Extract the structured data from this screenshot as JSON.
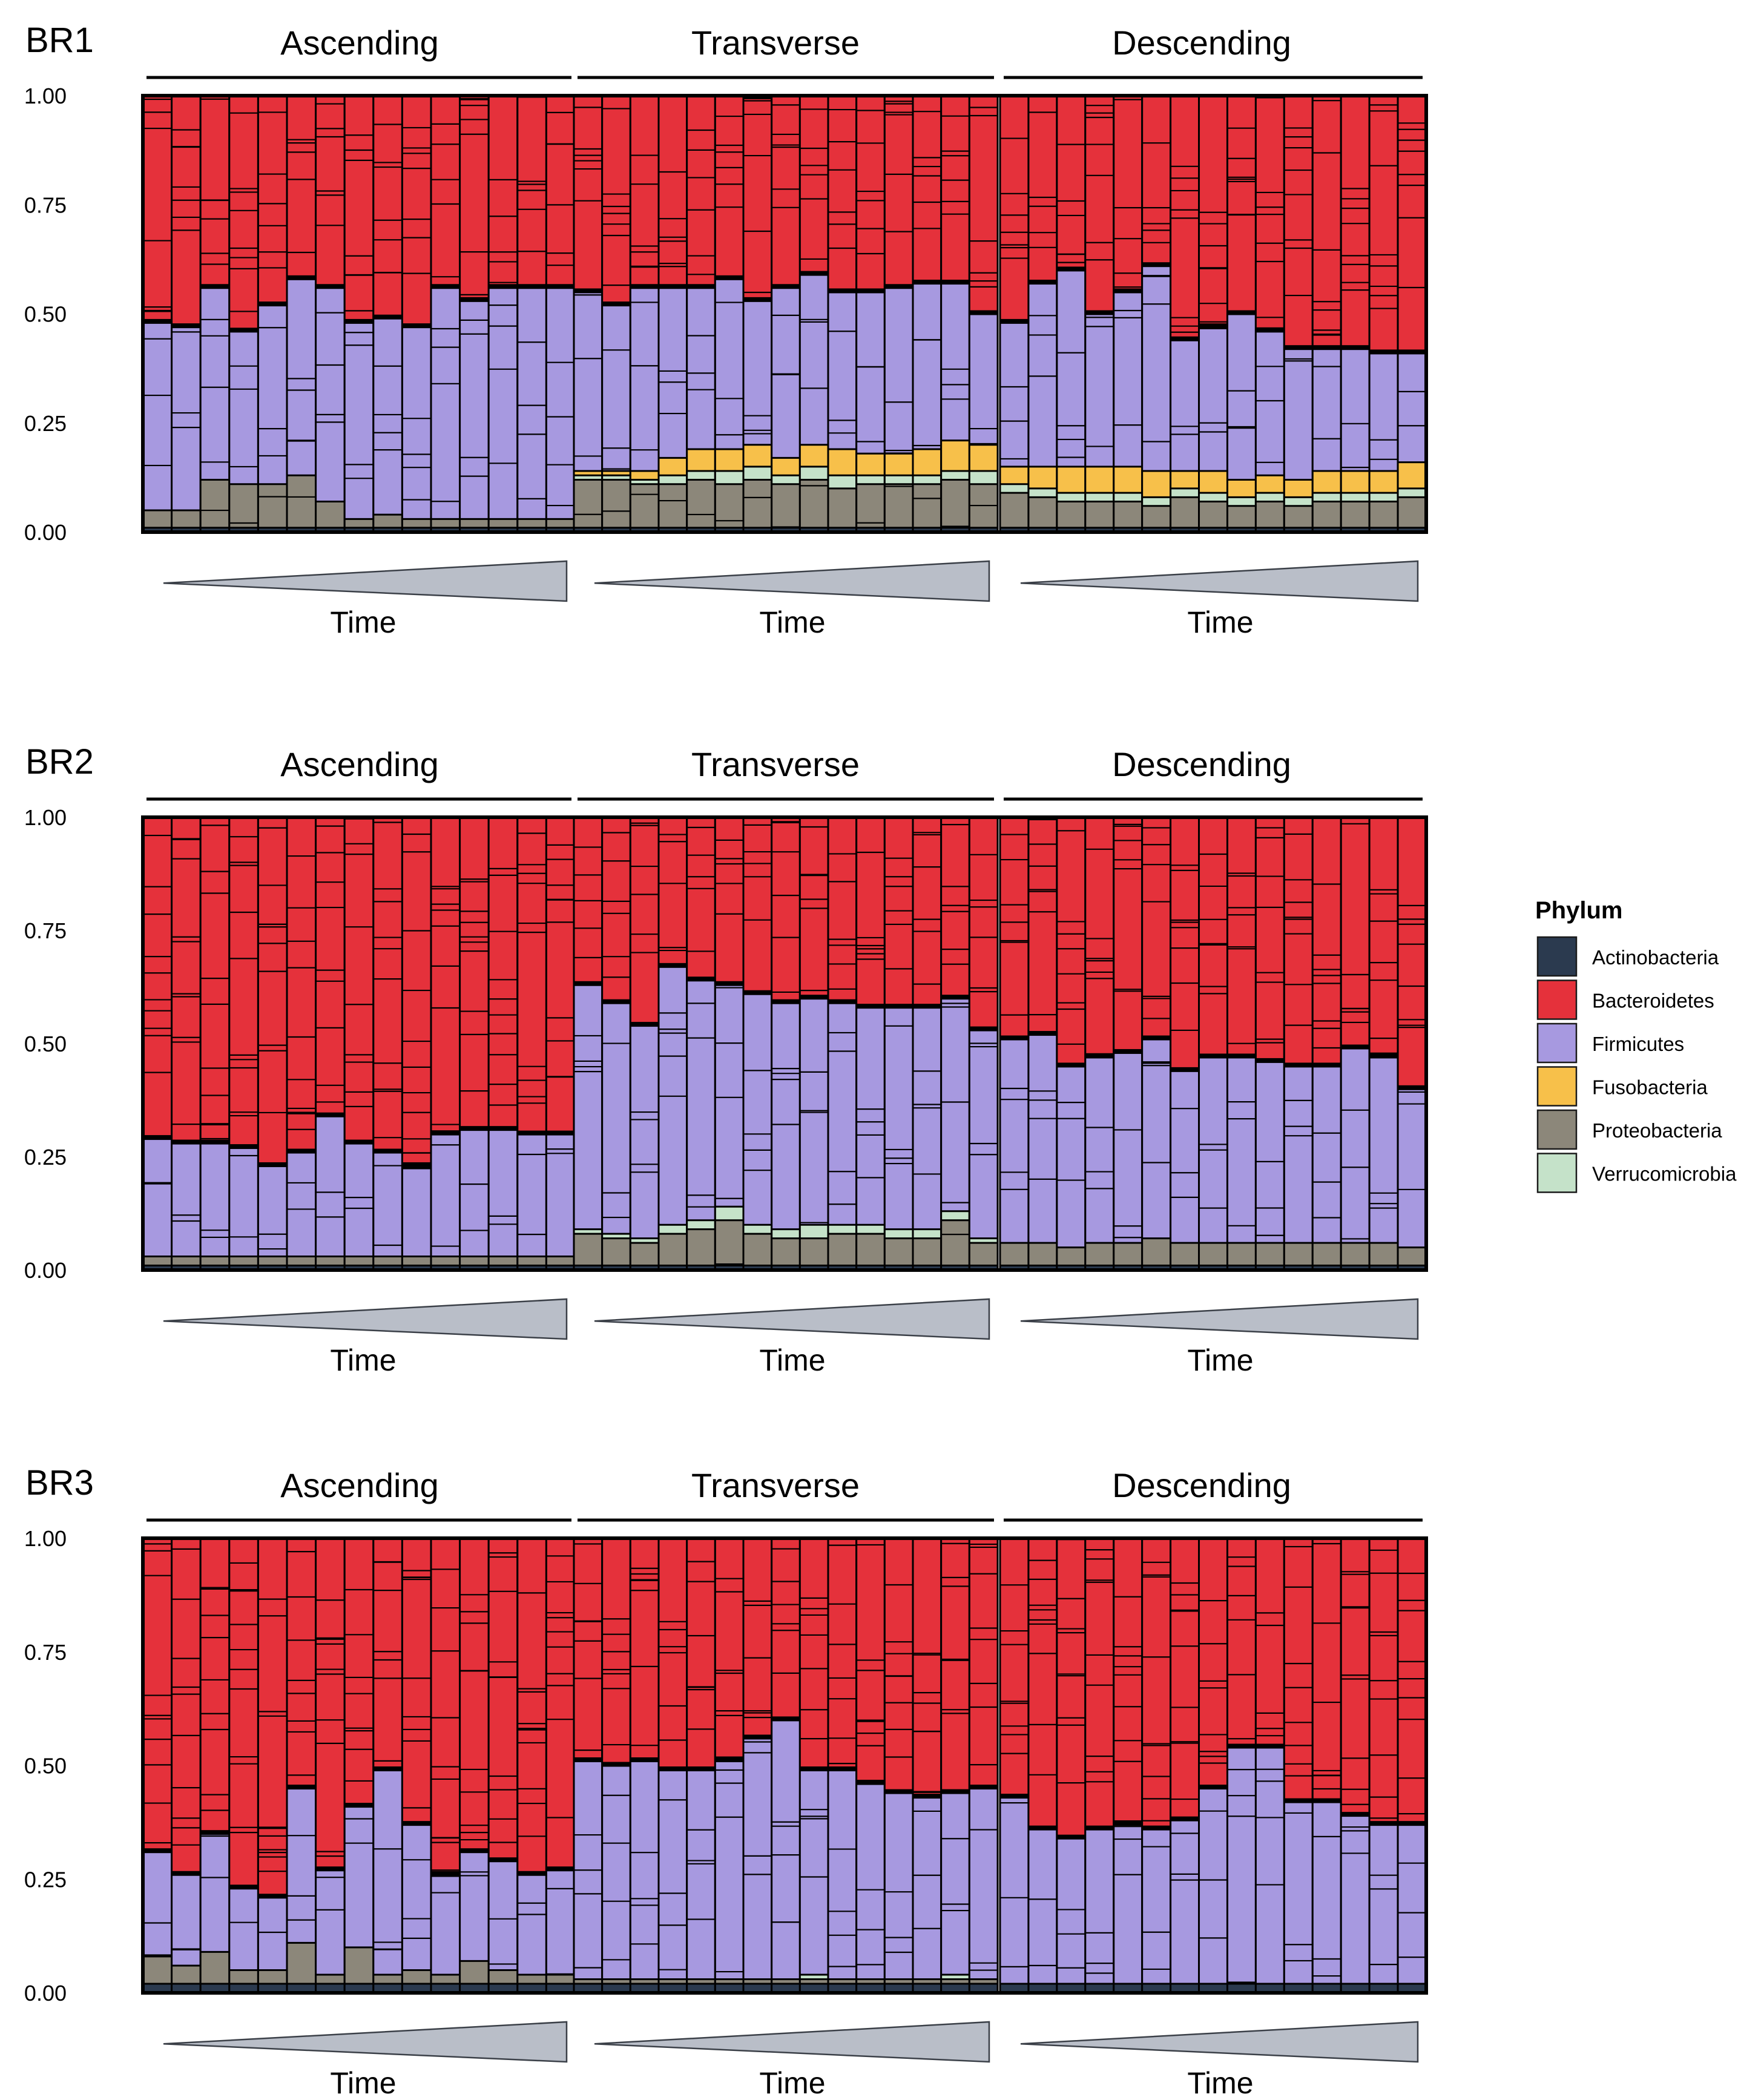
{
  "colors": {
    "Actinobacteria": "#2b3a4f",
    "Bacteroidetes": "#e5313b",
    "Firmicutes": "#a799e0",
    "Fusobacteria": "#f7c04a",
    "Proteobacteria": "#8c877a",
    "Verrucomicrobia": "#c5e2c9",
    "divider": "#000000",
    "time_wedge": "#b9bec8"
  },
  "legend": {
    "title": "Phylum",
    "items": [
      "Actinobacteria",
      "Bacteroidetes",
      "Firmicutes",
      "Fusobacteria",
      "Proteobacteria",
      "Verrucomicrobia"
    ]
  },
  "chart_data": [
    {
      "type": "bar",
      "stacked": true,
      "panel": "BR1",
      "ylim": [
        0,
        1
      ],
      "yticks": [
        "1.00",
        "0.75",
        "0.50",
        "0.25",
        "0.00"
      ],
      "time_label": "Time",
      "groups": [
        {
          "name": "Ascending",
          "n": 15,
          "series": {
            "Actinobacteria": 0.01,
            "Proteobacteria": [
              0.04,
              0.04,
              0.11,
              0.1,
              0.1,
              0.12,
              0.06,
              0.02,
              0.03,
              0.02,
              0.02,
              0.02,
              0.02,
              0.02,
              0.02
            ],
            "Fusobacteria": 0,
            "Verrucomicrobia": 0,
            "Firmicutes": [
              0.43,
              0.42,
              0.44,
              0.35,
              0.41,
              0.45,
              0.49,
              0.45,
              0.45,
              0.44,
              0.53,
              0.5,
              0.53,
              0.53,
              0.53
            ]
          }
        },
        {
          "name": "Transverse",
          "n": 15,
          "series": {
            "Actinobacteria": 0.01,
            "Proteobacteria": [
              0.11,
              0.11,
              0.1,
              0.1,
              0.11,
              0.1,
              0.11,
              0.1,
              0.11,
              0.09,
              0.1,
              0.1,
              0.1,
              0.11,
              0.1
            ],
            "Fusobacteria": [
              0.01,
              0.01,
              0.02,
              0.04,
              0.05,
              0.05,
              0.05,
              0.04,
              0.05,
              0.06,
              0.05,
              0.05,
              0.06,
              0.07,
              0.06
            ],
            "Verrucomicrobia": [
              0.01,
              0.01,
              0.01,
              0.02,
              0.02,
              0.03,
              0.03,
              0.02,
              0.03,
              0.03,
              0.02,
              0.02,
              0.02,
              0.02,
              0.03
            ],
            "Firmicutes": [
              0.41,
              0.38,
              0.42,
              0.39,
              0.37,
              0.39,
              0.33,
              0.39,
              0.39,
              0.36,
              0.37,
              0.38,
              0.38,
              0.36,
              0.3
            ]
          }
        },
        {
          "name": "Descending",
          "n": 15,
          "series": {
            "Actinobacteria": 0.01,
            "Proteobacteria": [
              0.08,
              0.07,
              0.06,
              0.06,
              0.06,
              0.05,
              0.07,
              0.06,
              0.05,
              0.06,
              0.05,
              0.06,
              0.06,
              0.06,
              0.07
            ],
            "Fusobacteria": [
              0.04,
              0.05,
              0.06,
              0.06,
              0.06,
              0.06,
              0.04,
              0.05,
              0.04,
              0.04,
              0.04,
              0.05,
              0.05,
              0.05,
              0.06
            ],
            "Verrucomicrobia": [
              0.02,
              0.02,
              0.02,
              0.02,
              0.02,
              0.02,
              0.02,
              0.02,
              0.02,
              0.02,
              0.02,
              0.02,
              0.02,
              0.02,
              0.02
            ],
            "Firmicutes": [
              0.33,
              0.42,
              0.45,
              0.35,
              0.4,
              0.47,
              0.3,
              0.33,
              0.38,
              0.33,
              0.3,
              0.28,
              0.28,
              0.27,
              0.25
            ]
          }
        }
      ]
    },
    {
      "type": "bar",
      "stacked": true,
      "panel": "BR2",
      "ylim": [
        0,
        1
      ],
      "yticks": [
        "1.00",
        "0.75",
        "0.50",
        "0.25",
        "0.00"
      ],
      "time_label": "Time",
      "groups": [
        {
          "name": "Ascending",
          "n": 15,
          "series": {
            "Actinobacteria": 0.01,
            "Proteobacteria": [
              0.02,
              0.02,
              0.02,
              0.02,
              0.02,
              0.02,
              0.02,
              0.02,
              0.02,
              0.02,
              0.02,
              0.02,
              0.02,
              0.02,
              0.02
            ],
            "Fusobacteria": 0,
            "Verrucomicrobia": 0,
            "Firmicutes": [
              0.26,
              0.25,
              0.25,
              0.24,
              0.2,
              0.23,
              0.31,
              0.25,
              0.23,
              0.2,
              0.27,
              0.28,
              0.28,
              0.27,
              0.27
            ]
          }
        },
        {
          "name": "Transverse",
          "n": 15,
          "series": {
            "Actinobacteria": 0.01,
            "Proteobacteria": [
              0.07,
              0.06,
              0.05,
              0.07,
              0.08,
              0.1,
              0.07,
              0.06,
              0.06,
              0.07,
              0.07,
              0.06,
              0.06,
              0.1,
              0.05
            ],
            "Fusobacteria": 0,
            "Verrucomicrobia": [
              0.01,
              0.01,
              0.01,
              0.02,
              0.02,
              0.03,
              0.02,
              0.02,
              0.03,
              0.02,
              0.02,
              0.02,
              0.02,
              0.02,
              0.01
            ],
            "Firmicutes": [
              0.54,
              0.51,
              0.47,
              0.57,
              0.53,
              0.49,
              0.51,
              0.5,
              0.5,
              0.49,
              0.48,
              0.49,
              0.49,
              0.47,
              0.46
            ]
          }
        },
        {
          "name": "Descending",
          "n": 15,
          "series": {
            "Actinobacteria": 0.01,
            "Proteobacteria": [
              0.05,
              0.05,
              0.04,
              0.05,
              0.05,
              0.06,
              0.05,
              0.05,
              0.05,
              0.05,
              0.05,
              0.05,
              0.05,
              0.05,
              0.04
            ],
            "Fusobacteria": 0,
            "Verrucomicrobia": 0,
            "Firmicutes": [
              0.45,
              0.46,
              0.4,
              0.41,
              0.42,
              0.44,
              0.38,
              0.41,
              0.41,
              0.4,
              0.39,
              0.39,
              0.43,
              0.41,
              0.35
            ]
          }
        }
      ]
    },
    {
      "type": "bar",
      "stacked": true,
      "panel": "BR3",
      "ylim": [
        0,
        1
      ],
      "yticks": [
        "1.00",
        "0.75",
        "0.50",
        "0.25",
        "0.00"
      ],
      "time_label": "Time",
      "groups": [
        {
          "name": "Ascending",
          "n": 15,
          "series": {
            "Actinobacteria": 0.02,
            "Proteobacteria": [
              0.06,
              0.04,
              0.07,
              0.03,
              0.03,
              0.09,
              0.02,
              0.08,
              0.02,
              0.03,
              0.02,
              0.05,
              0.03,
              0.02,
              0.02
            ],
            "Fusobacteria": 0,
            "Verrucomicrobia": 0,
            "Firmicutes": [
              0.23,
              0.2,
              0.26,
              0.18,
              0.16,
              0.34,
              0.23,
              0.31,
              0.45,
              0.32,
              0.22,
              0.24,
              0.24,
              0.22,
              0.23
            ]
          }
        },
        {
          "name": "Transverse",
          "n": 15,
          "series": {
            "Actinobacteria": 0.02,
            "Proteobacteria": [
              0.01,
              0.01,
              0.01,
              0.01,
              0.01,
              0.01,
              0.01,
              0.01,
              0.01,
              0.01,
              0.01,
              0.01,
              0.01,
              0.01,
              0.01
            ],
            "Fusobacteria": 0,
            "Verrucomicrobia": [
              0,
              0,
              0,
              0,
              0,
              0,
              0,
              0,
              0.01,
              0,
              0,
              0,
              0,
              0.01,
              0
            ],
            "Firmicutes": [
              0.48,
              0.47,
              0.48,
              0.46,
              0.46,
              0.48,
              0.53,
              0.57,
              0.45,
              0.46,
              0.43,
              0.41,
              0.4,
              0.4,
              0.42
            ]
          }
        },
        {
          "name": "Descending",
          "n": 15,
          "series": {
            "Actinobacteria": 0.02,
            "Proteobacteria": [
              0,
              0,
              0,
              0,
              0,
              0,
              0,
              0,
              0,
              0,
              0,
              0,
              0,
              0,
              0
            ],
            "Fusobacteria": 0,
            "Verrucomicrobia": 0,
            "Firmicutes": [
              0.41,
              0.34,
              0.32,
              0.34,
              0.35,
              0.34,
              0.36,
              0.43,
              0.52,
              0.52,
              0.4,
              0.4,
              0.37,
              0.35,
              0.35
            ]
          }
        }
      ]
    }
  ]
}
